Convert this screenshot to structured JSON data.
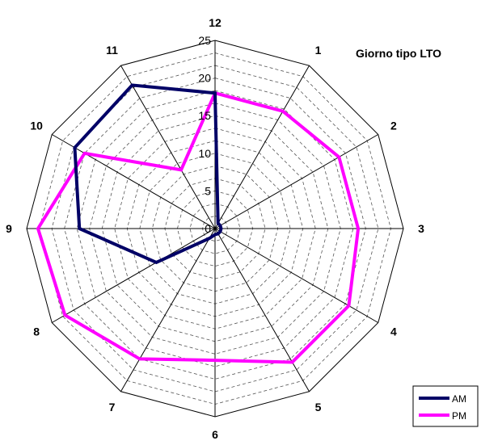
{
  "chart_data": {
    "type": "radar",
    "title": "Giorno tipo LTO",
    "categories": [
      "12",
      "1",
      "2",
      "3",
      "4",
      "5",
      "6",
      "7",
      "8",
      "9",
      "10",
      "11"
    ],
    "r_ticks": [
      "0",
      "5",
      "10",
      "15",
      "20",
      "25"
    ],
    "rlim": [
      0,
      25
    ],
    "grid": true,
    "legend_position": "bottom-right",
    "series": [
      {
        "name": "AM",
        "color": "#000066",
        "values": [
          18,
          0.8,
          0.8,
          0.8,
          0.8,
          0.8,
          0.8,
          1.5,
          9,
          18,
          21.5,
          22
        ]
      },
      {
        "name": "PM",
        "color": "#FF00FF",
        "values": [
          18,
          18,
          19,
          19,
          20.5,
          20.5,
          17.5,
          20,
          23,
          23.5,
          20,
          9
        ]
      }
    ]
  }
}
